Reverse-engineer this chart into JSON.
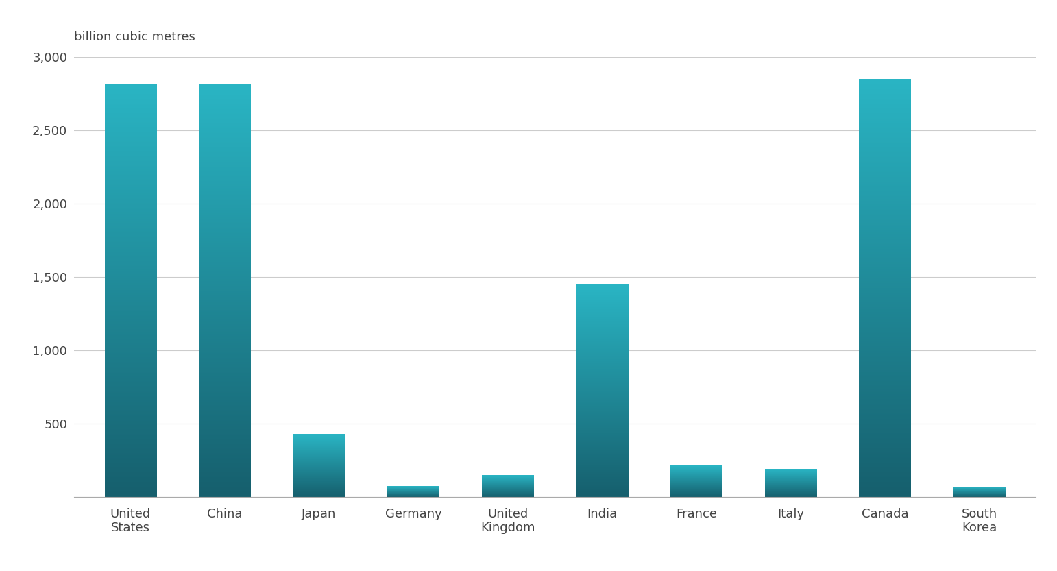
{
  "categories": [
    "United\nStates",
    "China",
    "Japan",
    "Germany",
    "United\nKingdom",
    "India",
    "France",
    "Italy",
    "Canada",
    "South\nKorea"
  ],
  "values": [
    2820,
    2812,
    430,
    74,
    147,
    1446,
    211,
    191,
    2850,
    70
  ],
  "bar_color_bottom": "#165f6d",
  "bar_color_top": "#2ab5c4",
  "top_label": "billion cubic metres",
  "ylim": [
    0,
    3000
  ],
  "yticks": [
    0,
    500,
    1000,
    1500,
    2000,
    2500,
    3000
  ],
  "background_color": "#ffffff",
  "grid_color": "#cccccc",
  "label_fontsize": 13,
  "tick_fontsize": 13
}
